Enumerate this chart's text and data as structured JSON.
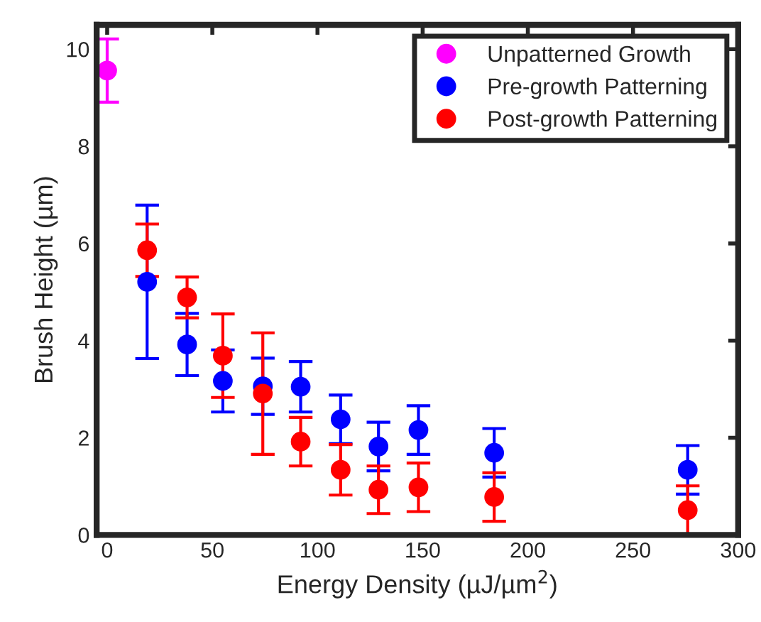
{
  "chart_data": {
    "type": "scatter",
    "xlabel": "Energy Density (µJ/µm$^{2}$)",
    "ylabel": "Brush Height (µm)",
    "xlim": [
      -5,
      300
    ],
    "ylim": [
      0,
      10.5
    ],
    "xticks": [
      0,
      50,
      100,
      150,
      200,
      250,
      300
    ],
    "yticks": [
      0,
      2,
      4,
      6,
      8,
      10
    ],
    "legend": "top right",
    "marker": "circle",
    "grid": false,
    "series": [
      {
        "name": "Unpatterned Growth",
        "color": "#ff00ff",
        "x": [
          0
        ],
        "values": [
          9.56
        ],
        "errors": [
          0.65
        ]
      },
      {
        "name": "Pre-growth Patterning",
        "color": "#0000ff",
        "x": [
          19,
          38,
          55,
          74,
          92,
          111,
          129,
          148,
          184,
          276
        ],
        "values": [
          5.21,
          3.92,
          3.17,
          3.06,
          3.05,
          2.38,
          1.82,
          2.16,
          1.69,
          1.34
        ],
        "errors": [
          1.58,
          0.64,
          0.64,
          0.58,
          0.52,
          0.5,
          0.5,
          0.5,
          0.5,
          0.5
        ]
      },
      {
        "name": "Post-growth Patterning",
        "color": "#ff0000",
        "x": [
          19,
          38,
          55,
          74,
          92,
          111,
          129,
          148,
          184,
          276
        ],
        "values": [
          5.86,
          4.89,
          3.69,
          2.91,
          1.92,
          1.34,
          0.93,
          0.98,
          0.78,
          0.51
        ],
        "errors": [
          0.54,
          0.42,
          0.86,
          1.25,
          0.5,
          0.52,
          0.49,
          0.5,
          0.5,
          0.5
        ]
      }
    ]
  }
}
